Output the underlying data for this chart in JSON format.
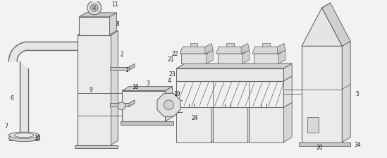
{
  "bg_color": "#f2f2f2",
  "lc": "#666666",
  "lc_dark": "#444444",
  "fc_light": "#ebebeb",
  "fc_mid": "#d8d8d8",
  "fc_dark": "#c4c4c4",
  "fc_white": "#f8f8f8",
  "figsize": [
    5.49,
    2.24
  ],
  "dpi": 100,
  "xlim": [
    0,
    5.49
  ],
  "ylim": [
    0,
    2.24
  ]
}
